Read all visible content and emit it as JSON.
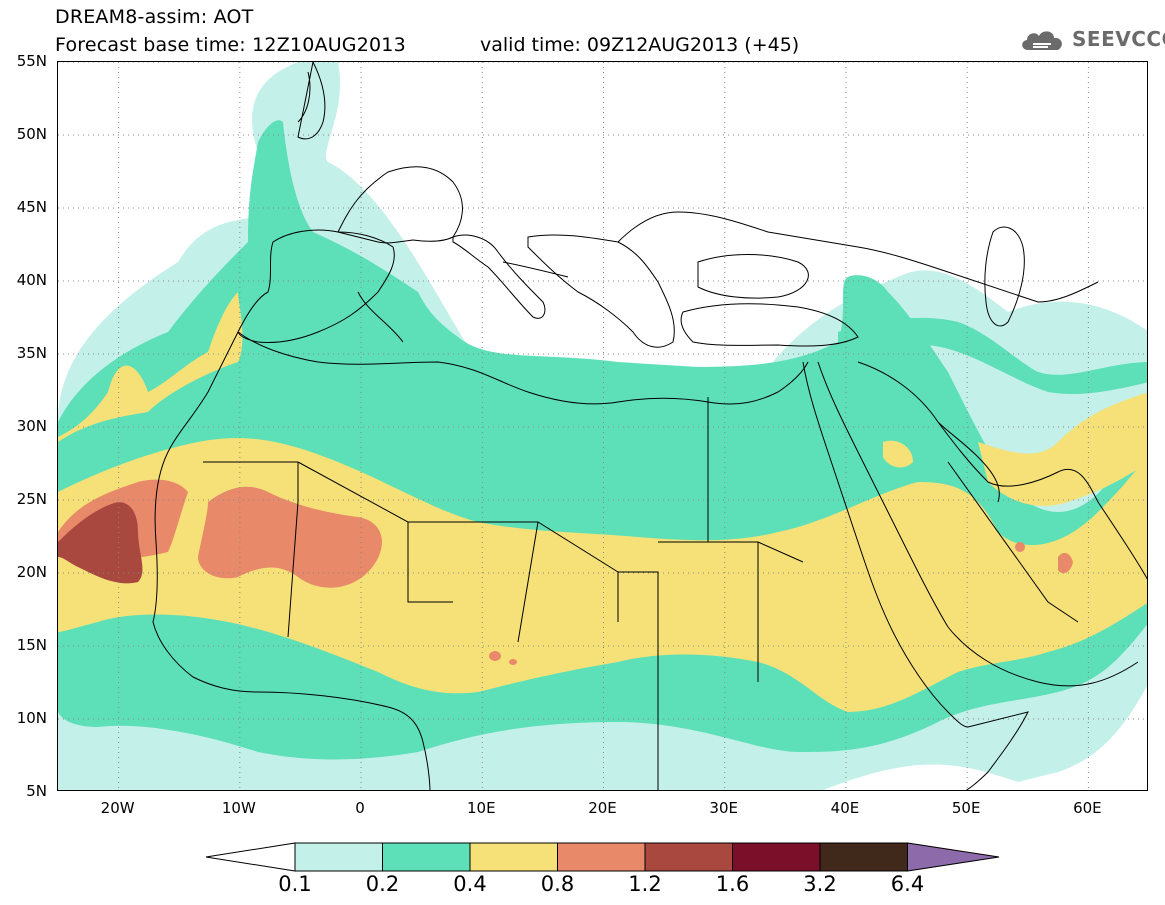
{
  "header": {
    "title_line1": "DREAM8-assim: AOT",
    "title_line2": "Forecast base time: 12Z10AUG2013",
    "valid_time": "valid time: 09Z12AUG2013 (+45)"
  },
  "logo": {
    "text": "SEEVCCC",
    "icon": "cloud-icon",
    "color": "#6b6b6b"
  },
  "map": {
    "latitude_labels": [
      "55N",
      "50N",
      "45N",
      "40N",
      "35N",
      "30N",
      "25N",
      "20N",
      "15N",
      "10N",
      "5N"
    ],
    "latitude_values": [
      55,
      50,
      45,
      40,
      35,
      30,
      25,
      20,
      15,
      10,
      5
    ],
    "longitude_labels": [
      "20W",
      "10W",
      "0",
      "10E",
      "20E",
      "30E",
      "40E",
      "50E",
      "60E"
    ],
    "longitude_values": [
      -20,
      -10,
      0,
      10,
      20,
      30,
      40,
      50,
      60
    ],
    "lon_range": [
      -25,
      65
    ],
    "lat_range": [
      5,
      55
    ],
    "grid": "dotted"
  },
  "colorbar": {
    "labels": [
      "0.1",
      "0.2",
      "0.4",
      "0.8",
      "1.2",
      "1.6",
      "3.2",
      "6.4"
    ],
    "colors": [
      "#ffffff",
      "#c4f0ea",
      "#5ddfb8",
      "#f5e178",
      "#e8896a",
      "#a9483f",
      "#7b0f2a",
      "#40281a",
      "#8d6aaa"
    ]
  }
}
